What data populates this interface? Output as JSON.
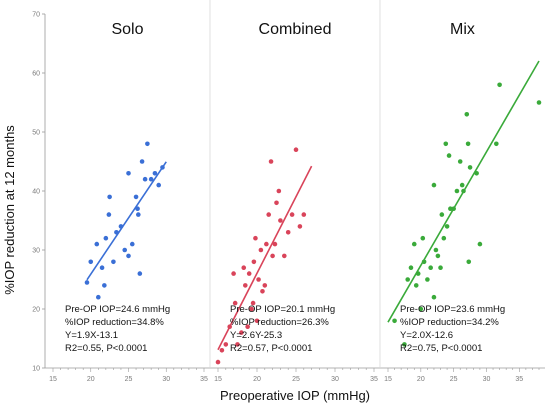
{
  "chart_data": {
    "type": "scatter",
    "xlabel": "Preoperative IOP (mmHg)",
    "ylabel": "%IOP reduction at 12 months",
    "ylim": [
      10,
      70
    ],
    "yticks": [
      "10",
      "20",
      "30",
      "40",
      "50",
      "60",
      "70"
    ],
    "xticks": [
      "15",
      "20",
      "25",
      "30",
      "35"
    ],
    "grid": false,
    "panels": [
      {
        "title": "Solo",
        "color": "#3a6fd6",
        "xlim": [
          15,
          35
        ],
        "fit_x": [
          19.5,
          30
        ],
        "annotation": [
          "Pre-OP IOP=24.6 mmHg",
          "%IOP reduction=34.8%",
          "Y=1.9X-13.1",
          "R2=0.55, P<0.0001"
        ],
        "points": [
          [
            19.5,
            24.5
          ],
          [
            20,
            28
          ],
          [
            20.8,
            31
          ],
          [
            21,
            22
          ],
          [
            21.5,
            27
          ],
          [
            21.8,
            24
          ],
          [
            22,
            32
          ],
          [
            22.4,
            36
          ],
          [
            22.5,
            39
          ],
          [
            23,
            28
          ],
          [
            23.4,
            33
          ],
          [
            24,
            34
          ],
          [
            24.5,
            30
          ],
          [
            25,
            43
          ],
          [
            25,
            29
          ],
          [
            25.5,
            31
          ],
          [
            26,
            39
          ],
          [
            26.2,
            37
          ],
          [
            26.3,
            36
          ],
          [
            26.5,
            26
          ],
          [
            26.8,
            45
          ],
          [
            27.2,
            42
          ],
          [
            27.5,
            48
          ],
          [
            28,
            42
          ],
          [
            28.5,
            43
          ],
          [
            29,
            41
          ],
          [
            29.5,
            44
          ]
        ]
      },
      {
        "title": "Combined",
        "color": "#d9445a",
        "xlim": [
          15,
          35
        ],
        "fit_x": [
          15,
          27
        ],
        "annotation": [
          "Pre-OP IOP=20.1 mmHg",
          "%IOP reduction=26.3%",
          "Y=2.6Y-25.3",
          "R2=0.57, P<0.0001"
        ],
        "points": [
          [
            15,
            11
          ],
          [
            15.5,
            13
          ],
          [
            16,
            14
          ],
          [
            16.5,
            17
          ],
          [
            17,
            26
          ],
          [
            17.2,
            21
          ],
          [
            17.5,
            14
          ],
          [
            18,
            16
          ],
          [
            18.3,
            27
          ],
          [
            18.5,
            24
          ],
          [
            18.8,
            17
          ],
          [
            19,
            26
          ],
          [
            19.3,
            20
          ],
          [
            19.5,
            21
          ],
          [
            19.6,
            28
          ],
          [
            19.8,
            32
          ],
          [
            20,
            18
          ],
          [
            20.2,
            25
          ],
          [
            20.5,
            30
          ],
          [
            20.7,
            23
          ],
          [
            21,
            24
          ],
          [
            21.2,
            31
          ],
          [
            21.5,
            36
          ],
          [
            21.8,
            45
          ],
          [
            22,
            29
          ],
          [
            22.3,
            31
          ],
          [
            22.5,
            38
          ],
          [
            22.8,
            40
          ],
          [
            23,
            35
          ],
          [
            23.5,
            29
          ],
          [
            24,
            33
          ],
          [
            24.5,
            36
          ],
          [
            25,
            47
          ],
          [
            25.5,
            34
          ],
          [
            26,
            36
          ]
        ]
      },
      {
        "title": "Mix",
        "color": "#3aaa3a",
        "xlim": [
          15,
          38
        ],
        "fit_x": [
          15,
          38
        ],
        "annotation": [
          "Pre-OP IOP=23.6 mmHg",
          "%IOP reduction=34.2%",
          "Y=2.0X-12.6",
          "R2=0.75, P<0.0001"
        ],
        "points": [
          [
            16,
            18
          ],
          [
            17.5,
            14
          ],
          [
            18,
            25
          ],
          [
            18.5,
            27
          ],
          [
            19,
            31
          ],
          [
            19.3,
            24
          ],
          [
            19.6,
            26
          ],
          [
            20,
            20
          ],
          [
            20.3,
            32
          ],
          [
            20.5,
            28
          ],
          [
            21,
            25
          ],
          [
            21.5,
            27
          ],
          [
            22,
            22
          ],
          [
            22,
            41
          ],
          [
            22.3,
            30
          ],
          [
            22.6,
            29
          ],
          [
            23,
            27
          ],
          [
            23.2,
            36
          ],
          [
            23.5,
            32
          ],
          [
            23.8,
            48
          ],
          [
            24,
            34
          ],
          [
            24.3,
            46
          ],
          [
            24.5,
            37
          ],
          [
            25,
            37
          ],
          [
            25.5,
            40
          ],
          [
            26,
            45
          ],
          [
            26.3,
            41
          ],
          [
            26.5,
            40
          ],
          [
            27,
            53
          ],
          [
            27.2,
            48
          ],
          [
            27.3,
            28
          ],
          [
            27.5,
            44
          ],
          [
            28.5,
            43
          ],
          [
            29,
            31
          ],
          [
            31.5,
            48
          ],
          [
            32,
            58
          ],
          [
            38,
            55
          ]
        ]
      }
    ]
  }
}
